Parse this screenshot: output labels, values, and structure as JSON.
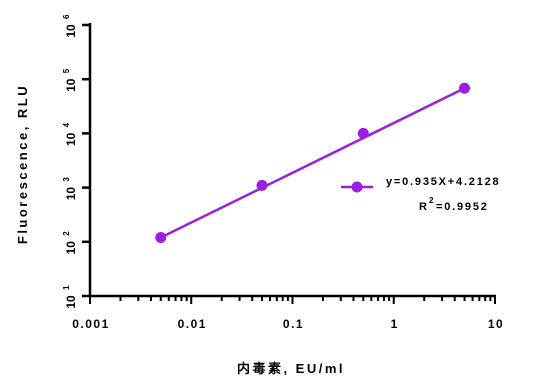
{
  "chart_data": {
    "type": "scatter",
    "xlabel": "内毒素, EU/ml",
    "ylabel": "Fluorescence, RLU",
    "x_scale": "log",
    "y_scale": "log",
    "xlim": [
      0.001,
      10
    ],
    "ylim": [
      10,
      1000000
    ],
    "x_tick_labels": [
      "0.001",
      "0.01",
      "0.1",
      "1",
      "10"
    ],
    "y_tick_labels": [
      {
        "base": "10",
        "exp": "1"
      },
      {
        "base": "10",
        "exp": "2"
      },
      {
        "base": "10",
        "exp": "3"
      },
      {
        "base": "10",
        "exp": "4"
      },
      {
        "base": "10",
        "exp": "5"
      },
      {
        "base": "10",
        "exp": "6"
      }
    ],
    "series": [
      {
        "points": [
          {
            "x": 0.005,
            "y": 120
          },
          {
            "x": 0.05,
            "y": 1100
          },
          {
            "x": 0.5,
            "y": 10000
          },
          {
            "x": 5,
            "y": 68000
          }
        ],
        "fit_line": {
          "from": [
            0.005,
            120
          ],
          "to": [
            5,
            68000
          ]
        },
        "color": "#9b1fe0"
      }
    ],
    "legend": {
      "placement": "right",
      "equation": "y=0.935X+4.2128",
      "r2_prefix": "R",
      "r2_superscript": "2",
      "r2_value": "=0.9952"
    },
    "grid": false
  }
}
